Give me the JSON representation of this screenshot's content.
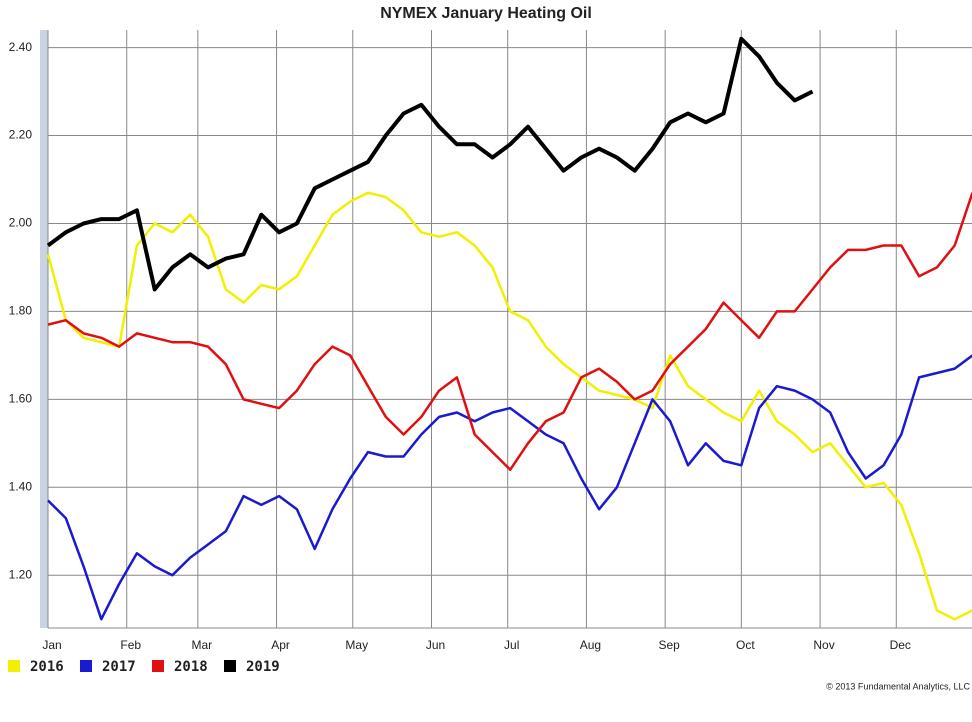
{
  "chart_data": {
    "type": "line",
    "title": "NYMEX January Heating Oil",
    "credit": "© 2013 Fundamental Analytics, LLC",
    "x": [
      0,
      7,
      14,
      21,
      28,
      35,
      42,
      49,
      56,
      63,
      70,
      77,
      84,
      91,
      98,
      105,
      112,
      119,
      126,
      133,
      140,
      147,
      154,
      161,
      168,
      175,
      182,
      189,
      196,
      203,
      210,
      217,
      224,
      231,
      238,
      245,
      252,
      259,
      266,
      273,
      280,
      287,
      294,
      301,
      308,
      315,
      322,
      329,
      336,
      343,
      350,
      357,
      364
    ],
    "xlim": [
      0,
      365
    ],
    "xticks": [
      {
        "value": 0,
        "label": "Jan"
      },
      {
        "value": 31,
        "label": "Feb"
      },
      {
        "value": 59,
        "label": "Mar"
      },
      {
        "value": 90,
        "label": "Apr"
      },
      {
        "value": 120,
        "label": "May"
      },
      {
        "value": 151,
        "label": "Jun"
      },
      {
        "value": 181,
        "label": "Jul"
      },
      {
        "value": 212,
        "label": "Aug"
      },
      {
        "value": 243,
        "label": "Sep"
      },
      {
        "value": 273,
        "label": "Oct"
      },
      {
        "value": 304,
        "label": "Nov"
      },
      {
        "value": 334,
        "label": "Dec"
      }
    ],
    "ylim": [
      1.08,
      2.44
    ],
    "yticks": [
      {
        "value": 1.2,
        "label": "1.20"
      },
      {
        "value": 1.4,
        "label": "1.40"
      },
      {
        "value": 1.6,
        "label": "1.60"
      },
      {
        "value": 1.8,
        "label": "1.80"
      },
      {
        "value": 2.0,
        "label": "2.00"
      },
      {
        "value": 2.2,
        "label": "2.20"
      },
      {
        "value": 2.4,
        "label": "2.40"
      }
    ],
    "grid": true,
    "legend": "bottom-left",
    "series": [
      {
        "name": "2016",
        "color": "#f0f000",
        "values": [
          1.93,
          1.78,
          1.74,
          1.73,
          1.72,
          1.95,
          2.0,
          1.98,
          2.02,
          1.97,
          1.85,
          1.82,
          1.86,
          1.85,
          1.88,
          1.95,
          2.02,
          2.05,
          2.07,
          2.06,
          2.03,
          1.98,
          1.97,
          1.98,
          1.95,
          1.9,
          1.8,
          1.78,
          1.72,
          1.68,
          1.65,
          1.62,
          1.61,
          1.6,
          1.58,
          1.7,
          1.63,
          1.6,
          1.57,
          1.55,
          1.62,
          1.55,
          1.52,
          1.48,
          1.5,
          1.45,
          1.4,
          1.41,
          1.36,
          1.25,
          1.12,
          1.1,
          1.12
        ]
      },
      {
        "name": "2017",
        "color": "#1a1ad0",
        "values": [
          1.37,
          1.33,
          1.22,
          1.1,
          1.18,
          1.25,
          1.22,
          1.2,
          1.24,
          1.27,
          1.3,
          1.38,
          1.36,
          1.38,
          1.35,
          1.26,
          1.35,
          1.42,
          1.48,
          1.47,
          1.47,
          1.52,
          1.56,
          1.57,
          1.55,
          1.57,
          1.58,
          1.55,
          1.52,
          1.5,
          1.42,
          1.35,
          1.4,
          1.5,
          1.6,
          1.55,
          1.45,
          1.5,
          1.46,
          1.45,
          1.58,
          1.63,
          1.62,
          1.6,
          1.57,
          1.48,
          1.42,
          1.45,
          1.52,
          1.65,
          1.66,
          1.67,
          1.7
        ]
      },
      {
        "name": "2018",
        "color": "#e01010",
        "values": [
          1.77,
          1.78,
          1.75,
          1.74,
          1.72,
          1.75,
          1.74,
          1.73,
          1.73,
          1.72,
          1.68,
          1.6,
          1.59,
          1.58,
          1.62,
          1.68,
          1.72,
          1.7,
          1.63,
          1.56,
          1.52,
          1.56,
          1.62,
          1.65,
          1.52,
          1.48,
          1.44,
          1.5,
          1.55,
          1.57,
          1.65,
          1.67,
          1.64,
          1.6,
          1.62,
          1.68,
          1.72,
          1.76,
          1.82,
          1.78,
          1.74,
          1.8,
          1.8,
          1.85,
          1.9,
          1.94,
          1.94,
          1.95,
          1.95,
          1.88,
          1.9,
          1.95,
          2.07
        ]
      },
      {
        "name": "2019",
        "color": "#000000",
        "values": [
          1.95,
          1.98,
          2.0,
          2.01,
          2.01,
          2.03,
          1.85,
          1.9,
          1.93,
          1.9,
          1.92,
          1.93,
          2.02,
          1.98,
          2.0,
          2.08,
          2.1,
          2.12,
          2.14,
          2.2,
          2.25,
          2.27,
          2.22,
          2.18,
          2.18,
          2.15,
          2.18,
          2.22,
          2.17,
          2.12,
          2.15,
          2.17,
          2.15,
          2.12,
          2.17,
          2.23,
          2.25,
          2.23,
          2.25,
          2.42,
          2.38,
          2.32,
          2.28,
          2.3,
          null,
          null,
          null,
          null,
          null,
          null,
          null,
          null,
          null
        ]
      }
    ]
  }
}
